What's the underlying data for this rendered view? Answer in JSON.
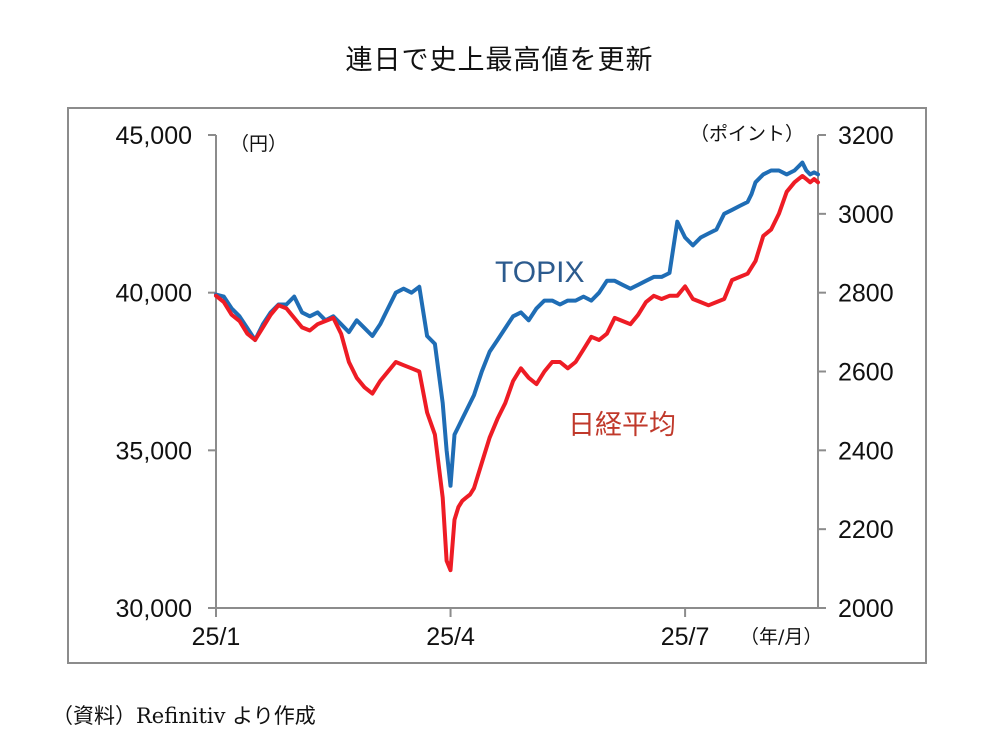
{
  "title": "連日で史上最高値を更新",
  "source": "（資料）Refinitiv より作成",
  "chart_data": {
    "type": "line",
    "left_axis": {
      "unit": "（円）",
      "ylim": [
        30000,
        45000
      ],
      "ticks": [
        "30,000",
        "35,000",
        "40,000",
        "45,000"
      ],
      "tick_values": [
        30000,
        35000,
        40000,
        45000
      ]
    },
    "right_axis": {
      "unit": "（ポイント）",
      "ylim": [
        2000,
        3200
      ],
      "ticks": [
        "2000",
        "2200",
        "2400",
        "2600",
        "2800",
        "3000",
        "3200"
      ],
      "tick_values": [
        2000,
        2200,
        2400,
        2600,
        2800,
        3000,
        3200
      ]
    },
    "x_axis": {
      "unit": "（年/月）",
      "ticks": [
        "25/1",
        "25/4",
        "25/7"
      ],
      "tick_positions": [
        0,
        3,
        6
      ],
      "range": [
        0,
        7.7
      ]
    },
    "series": [
      {
        "name": "TOPIX",
        "axis": "right",
        "color": "#1f6db5",
        "label_color": "#2c5b8e",
        "x": [
          0,
          0.1,
          0.2,
          0.3,
          0.4,
          0.5,
          0.6,
          0.7,
          0.8,
          0.9,
          1.0,
          1.1,
          1.2,
          1.3,
          1.4,
          1.5,
          1.6,
          1.7,
          1.8,
          1.9,
          2.0,
          2.1,
          2.2,
          2.3,
          2.4,
          2.5,
          2.6,
          2.7,
          2.8,
          2.9,
          2.95,
          3.0,
          3.05,
          3.1,
          3.15,
          3.2,
          3.25,
          3.3,
          3.4,
          3.5,
          3.6,
          3.7,
          3.8,
          3.9,
          4.0,
          4.1,
          4.2,
          4.3,
          4.4,
          4.5,
          4.6,
          4.7,
          4.8,
          4.9,
          5.0,
          5.1,
          5.2,
          5.3,
          5.4,
          5.5,
          5.6,
          5.7,
          5.8,
          5.9,
          6.0,
          6.1,
          6.2,
          6.3,
          6.4,
          6.5,
          6.6,
          6.7,
          6.8,
          6.85,
          6.9,
          7.0,
          7.1,
          7.2,
          7.3,
          7.4,
          7.45,
          7.5,
          7.55,
          7.6,
          7.65,
          7.7
        ],
        "values": [
          2795,
          2790,
          2760,
          2740,
          2710,
          2680,
          2720,
          2750,
          2770,
          2770,
          2790,
          2750,
          2740,
          2750,
          2730,
          2740,
          2720,
          2700,
          2730,
          2710,
          2690,
          2720,
          2760,
          2800,
          2810,
          2800,
          2815,
          2690,
          2670,
          2520,
          2400,
          2310,
          2440,
          2460,
          2480,
          2500,
          2520,
          2540,
          2600,
          2650,
          2680,
          2710,
          2740,
          2750,
          2730,
          2760,
          2780,
          2780,
          2770,
          2780,
          2780,
          2790,
          2780,
          2800,
          2830,
          2830,
          2820,
          2810,
          2820,
          2830,
          2840,
          2840,
          2850,
          2980,
          2940,
          2920,
          2940,
          2950,
          2960,
          3000,
          3010,
          3020,
          3030,
          3050,
          3080,
          3100,
          3110,
          3110,
          3100,
          3110,
          3120,
          3130,
          3110,
          3100,
          3105,
          3100
        ]
      },
      {
        "name": "日経平均",
        "axis": "left",
        "color": "#ee1c25",
        "label_color": "#c0392b",
        "x": [
          0,
          0.1,
          0.2,
          0.3,
          0.4,
          0.5,
          0.6,
          0.7,
          0.8,
          0.9,
          1.0,
          1.1,
          1.2,
          1.3,
          1.4,
          1.5,
          1.6,
          1.7,
          1.8,
          1.9,
          2.0,
          2.1,
          2.2,
          2.3,
          2.4,
          2.5,
          2.6,
          2.7,
          2.8,
          2.9,
          2.95,
          3.0,
          3.05,
          3.1,
          3.15,
          3.2,
          3.25,
          3.3,
          3.4,
          3.5,
          3.6,
          3.7,
          3.8,
          3.9,
          4.0,
          4.1,
          4.2,
          4.3,
          4.4,
          4.5,
          4.6,
          4.7,
          4.8,
          4.9,
          5.0,
          5.1,
          5.2,
          5.3,
          5.4,
          5.5,
          5.6,
          5.7,
          5.8,
          5.9,
          6.0,
          6.1,
          6.2,
          6.3,
          6.4,
          6.5,
          6.6,
          6.7,
          6.8,
          6.85,
          6.9,
          7.0,
          7.1,
          7.2,
          7.3,
          7.4,
          7.45,
          7.5,
          7.55,
          7.6,
          7.65,
          7.7
        ],
        "values": [
          39900,
          39700,
          39300,
          39100,
          38700,
          38500,
          38900,
          39300,
          39600,
          39500,
          39200,
          38900,
          38800,
          39000,
          39100,
          39200,
          38700,
          37800,
          37300,
          37000,
          36800,
          37200,
          37500,
          37800,
          37700,
          37600,
          37500,
          36200,
          35500,
          33500,
          31500,
          31200,
          32800,
          33200,
          33400,
          33500,
          33600,
          33800,
          34600,
          35400,
          36000,
          36500,
          37200,
          37600,
          37300,
          37100,
          37500,
          37800,
          37800,
          37600,
          37800,
          38200,
          38600,
          38500,
          38700,
          39200,
          39100,
          39000,
          39300,
          39700,
          39900,
          39800,
          39900,
          39900,
          40200,
          39800,
          39700,
          39600,
          39700,
          39800,
          40400,
          40500,
          40600,
          40800,
          41000,
          41800,
          42000,
          42500,
          43200,
          43500,
          43600,
          43700,
          43600,
          43500,
          43600,
          43500
        ]
      }
    ],
    "annotations": [
      "TOPIX",
      "日経平均"
    ],
    "grid": false
  }
}
